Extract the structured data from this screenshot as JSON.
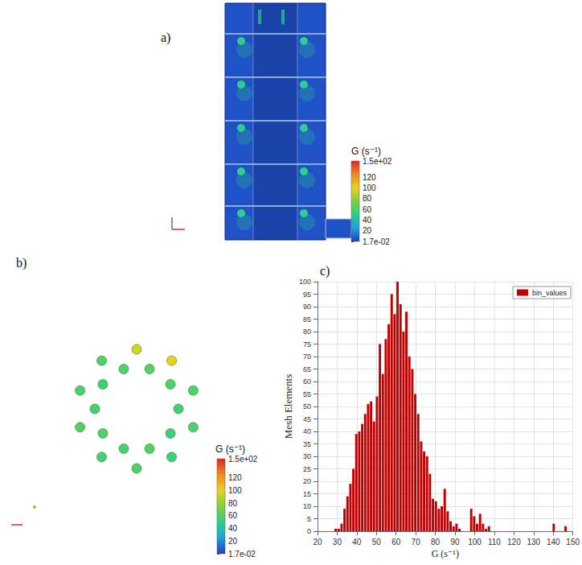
{
  "chart_data": [
    {
      "type": "contour",
      "label": "a)",
      "values": {
        "background": 5,
        "jets": 50
      },
      "colorbar": {
        "title": "G (s⁻¹)",
        "range": [
          0.017,
          150
        ],
        "ticks": [
          {
            "value": 0.017,
            "label": "1.7e-02"
          },
          20,
          40,
          60,
          80,
          100,
          120,
          {
            "value": 150,
            "label": "1.5e+02"
          }
        ],
        "colors": [
          "#1f3fbf",
          "#1ea0e0",
          "#2ecf8a",
          "#7fd13b",
          "#e9d021",
          "#f28a1f",
          "#e0242a"
        ]
      }
    },
    {
      "type": "scatter",
      "label": "b)",
      "values": [
        95,
        100,
        60,
        58,
        55,
        60,
        57,
        62,
        58,
        60,
        62,
        60,
        57,
        55,
        62,
        58,
        60,
        57,
        55,
        60
      ],
      "colorbar": {
        "title": "G (s⁻¹)",
        "range": [
          0.017,
          150
        ],
        "ticks": [
          {
            "value": 0.017,
            "label": "1.7e-02"
          },
          20,
          40,
          60,
          80,
          100,
          120,
          {
            "value": 150,
            "label": "1.5e+02"
          }
        ],
        "colors": [
          "#1f3fbf",
          "#1ea0e0",
          "#2ecf8a",
          "#7fd13b",
          "#e9d021",
          "#f28a1f",
          "#e0242a"
        ]
      }
    },
    {
      "type": "histogram",
      "label": "c)",
      "xlabel": "G (s⁻¹)",
      "ylabel": "Mesh Elements",
      "bins": [
        0,
        1.5,
        3,
        4.5,
        6,
        7.5,
        9,
        10.5,
        12,
        13.5,
        15,
        16.5,
        18,
        19.5,
        21,
        22.5,
        24,
        25.5,
        27,
        28.5,
        30,
        31.5,
        33,
        34.5,
        36,
        37.5,
        39,
        40.5,
        42,
        43.5,
        45,
        46.5,
        48,
        49.5,
        51,
        52.5,
        54,
        55.5,
        57,
        58.5,
        60,
        61.5,
        63,
        64.5,
        66,
        67.5,
        69,
        70.5,
        72,
        73.5,
        75,
        76.5,
        78,
        79.5,
        81,
        82.5,
        84,
        85.5,
        87,
        88.5,
        90,
        91.5,
        93,
        94.5,
        96,
        97.5,
        99,
        100.5,
        102,
        103.5,
        105,
        106.5,
        108,
        109.5,
        111,
        112.5,
        114,
        115.5,
        117,
        118.5,
        120,
        121.5,
        123,
        124.5,
        126,
        127.5,
        129,
        130.5,
        132,
        133.5,
        135,
        136.5,
        138,
        139.5,
        141,
        142.5,
        144,
        145.5,
        147,
        148.5,
        150
      ],
      "series": [
        {
          "name": "bin_values",
          "color": "#c00000",
          "values": [
            0,
            0,
            0,
            0,
            0,
            0,
            0,
            0,
            0,
            0,
            0,
            0,
            0,
            0,
            0,
            0,
            0,
            0,
            0,
            1,
            1,
            3,
            9,
            14,
            19,
            25,
            39,
            40,
            43,
            47,
            51,
            52,
            44,
            54,
            75,
            63,
            77,
            83,
            95,
            87,
            100,
            91,
            80,
            88,
            70,
            65,
            55,
            47,
            36,
            32,
            30,
            23,
            13,
            12,
            9,
            10,
            17,
            8,
            4,
            2,
            3,
            1,
            0,
            0,
            0,
            9,
            6,
            3,
            7,
            3,
            1,
            2,
            0,
            0,
            0,
            0,
            0,
            0,
            0,
            0,
            0,
            0,
            0,
            0,
            0,
            0,
            0,
            0,
            0,
            0,
            0,
            0,
            0,
            3,
            0,
            0,
            0,
            2,
            0,
            0
          ]
        }
      ],
      "xlim": [
        20,
        150
      ],
      "xticks": [
        20,
        30,
        40,
        50,
        60,
        70,
        80,
        90,
        100,
        110,
        120,
        130,
        140,
        150
      ],
      "ylim": [
        0,
        100
      ],
      "yticks": [
        0,
        5,
        10,
        15,
        20,
        25,
        30,
        35,
        40,
        45,
        50,
        55,
        60,
        65,
        70,
        75,
        80,
        85,
        90,
        95,
        100
      ],
      "grid": true,
      "legend": "upper right"
    }
  ]
}
